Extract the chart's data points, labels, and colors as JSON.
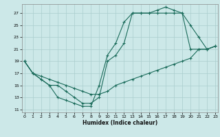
{
  "bg_color": "#cce8e8",
  "grid_color": "#aacece",
  "line_color": "#1a6b5a",
  "xlim": [
    -0.3,
    23.3
  ],
  "ylim": [
    10.5,
    28.5
  ],
  "xticks": [
    0,
    1,
    2,
    3,
    4,
    5,
    6,
    7,
    8,
    9,
    10,
    11,
    12,
    13,
    14,
    15,
    16,
    17,
    18,
    19,
    20,
    21,
    22,
    23
  ],
  "yticks": [
    11,
    13,
    15,
    17,
    19,
    21,
    23,
    25,
    27
  ],
  "xlabel": "Humidex (Indice chaleur)",
  "line1_x": [
    0,
    1,
    2,
    3,
    4,
    5,
    6,
    7,
    8,
    9,
    10,
    11,
    12,
    13,
    14,
    15,
    16,
    17,
    18,
    19,
    20,
    21,
    22,
    23
  ],
  "line1_y": [
    19,
    17,
    16,
    15,
    13,
    12.5,
    12,
    11.5,
    11.5,
    15,
    20,
    22,
    25.5,
    27,
    27,
    27,
    27.5,
    28,
    27.5,
    27,
    21,
    21,
    21,
    21.5
  ],
  "line2_x": [
    0,
    1,
    2,
    3,
    4,
    5,
    6,
    7,
    8,
    9,
    10,
    11,
    12,
    13,
    14,
    15,
    16,
    17,
    18,
    19,
    20,
    21,
    22,
    23
  ],
  "line2_y": [
    19,
    17,
    16,
    15,
    15,
    14,
    13,
    12,
    12,
    13,
    19,
    20,
    22,
    27,
    27,
    27,
    27,
    27,
    27,
    27,
    25,
    23,
    21,
    21.5
  ],
  "line3_x": [
    0,
    1,
    2,
    3,
    4,
    5,
    6,
    7,
    8,
    9,
    10,
    11,
    12,
    13,
    14,
    15,
    16,
    17,
    18,
    19,
    20,
    21,
    22,
    23
  ],
  "line3_y": [
    19,
    17,
    16.5,
    16,
    15.5,
    15,
    14.5,
    14,
    13.5,
    13.5,
    14,
    15,
    15.5,
    16,
    16.5,
    17,
    17.5,
    18,
    18.5,
    19,
    19.5,
    21,
    21,
    21.5
  ]
}
